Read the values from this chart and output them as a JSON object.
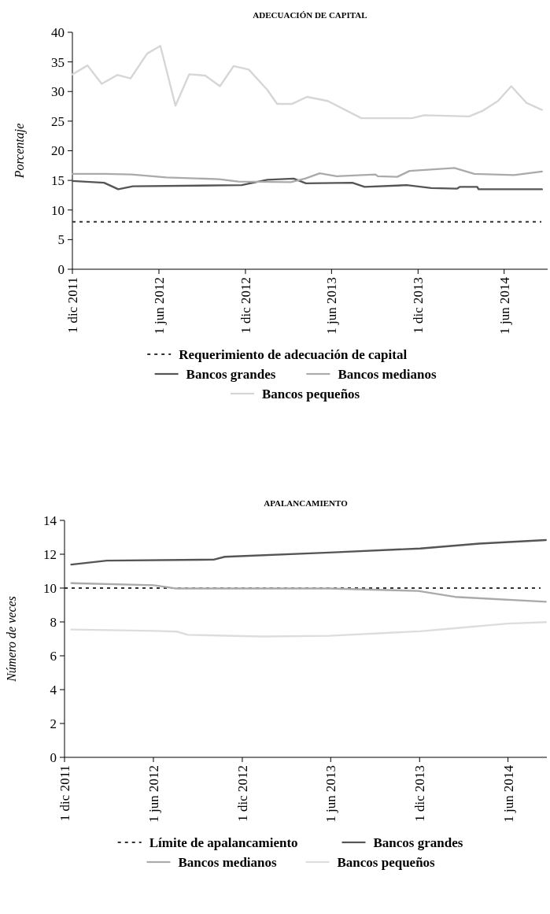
{
  "chart_data": [
    {
      "type": "line",
      "title": "ADECUACIÓN DE CAPITAL",
      "ylabel": "Porcentaje",
      "xlim": [
        "2011-12-01",
        "2014-09-01"
      ],
      "xticks": [
        {
          "value": "2011-12-01",
          "label": "1 dic 2011"
        },
        {
          "value": "2012-06-01",
          "label": "1 jun 2012"
        },
        {
          "value": "2012-12-01",
          "label": "1 dic 2012"
        },
        {
          "value": "2013-06-01",
          "label": "1 jun 2013"
        },
        {
          "value": "2013-12-01",
          "label": "1 dic 2013"
        },
        {
          "value": "2014-06-01",
          "label": "1 jun 2014"
        }
      ],
      "ylim": [
        0,
        40
      ],
      "yticks": [
        0,
        5,
        10,
        15,
        20,
        25,
        30,
        35,
        40
      ],
      "ref_lines": [
        {
          "axis": "y",
          "value": 8,
          "label": "Requerimiento de adecuación de capital",
          "color": "#333333",
          "line_style": "dashed"
        }
      ],
      "legend": "bottom",
      "grid": false,
      "line_style": "solid",
      "series": [
        {
          "name": "Bancos grandes",
          "color": "#555555",
          "x": [
            "2011-12-01",
            "2012-02-06",
            "2012-03-07",
            "2012-04-07",
            "2012-11-23",
            "2013-01-16",
            "2013-03-13",
            "2013-04-08",
            "2013-07-15",
            "2013-08-10",
            "2013-11-07",
            "2013-12-29",
            "2014-02-21",
            "2014-02-27",
            "2014-04-05",
            "2014-04-08",
            "2014-08-20"
          ],
          "values": [
            14.9,
            14.6,
            13.5,
            14.0,
            14.2,
            15.1,
            15.3,
            14.5,
            14.6,
            13.9,
            14.2,
            13.7,
            13.6,
            13.9,
            13.9,
            13.5,
            13.5
          ]
        },
        {
          "name": "Bancos medianos",
          "color": "#aaaaaa",
          "x": [
            "2011-12-01",
            "2012-02-08",
            "2012-04-04",
            "2012-06-17",
            "2012-10-06",
            "2012-11-16",
            "2013-03-07",
            "2013-04-06",
            "2013-05-07",
            "2013-06-12",
            "2013-09-02",
            "2013-09-07",
            "2013-10-18",
            "2013-11-13",
            "2014-02-16",
            "2014-03-30",
            "2014-06-22",
            "2014-08-20"
          ],
          "values": [
            16.1,
            16.1,
            16.0,
            15.5,
            15.2,
            14.8,
            14.7,
            15.3,
            16.2,
            15.7,
            16.0,
            15.7,
            15.6,
            16.6,
            17.1,
            16.1,
            15.9,
            16.5
          ]
        },
        {
          "name": "Bancos pequeños",
          "color": "#d6d6d6",
          "x": [
            "2011-12-01",
            "2012-01-02",
            "2012-02-01",
            "2012-03-05",
            "2012-04-02",
            "2012-05-07",
            "2012-06-04",
            "2012-07-06",
            "2012-08-04",
            "2012-09-07",
            "2012-10-08",
            "2012-11-06",
            "2012-12-08",
            "2013-01-16",
            "2013-02-06",
            "2013-03-09",
            "2013-04-10",
            "2013-05-24",
            "2013-08-03",
            "2013-11-18",
            "2013-12-14",
            "2014-03-19",
            "2014-04-18",
            "2014-05-19",
            "2014-06-16",
            "2014-07-18",
            "2014-08-20"
          ],
          "values": [
            32.9,
            34.4,
            31.3,
            32.8,
            32.2,
            36.4,
            37.7,
            27.6,
            32.9,
            32.7,
            30.9,
            34.3,
            33.7,
            30.3,
            27.9,
            27.9,
            29.1,
            28.4,
            25.5,
            25.5,
            26.0,
            25.8,
            26.8,
            28.4,
            30.9,
            28.1,
            26.9
          ]
        }
      ]
    },
    {
      "type": "line",
      "title": "APALANCAMIENTO",
      "ylabel": "Número de veces",
      "xlim": [
        "2011-12-01",
        "2014-08-20"
      ],
      "xticks": [
        {
          "value": "2011-12-01",
          "label": "1 dic 2011"
        },
        {
          "value": "2012-06-01",
          "label": "1 jun 2012"
        },
        {
          "value": "2012-12-01",
          "label": "1 dic 2012"
        },
        {
          "value": "2013-06-01",
          "label": "1 jun 2013"
        },
        {
          "value": "2013-12-01",
          "label": "1 dic 2013"
        },
        {
          "value": "2014-06-01",
          "label": "1 jun 2014"
        }
      ],
      "ylim": [
        0,
        14
      ],
      "yticks": [
        0,
        2,
        4,
        6,
        8,
        10,
        12,
        14
      ],
      "ref_lines": [
        {
          "axis": "y",
          "value": 10,
          "label": "Límite de apalancamiento",
          "color": "#333333",
          "line_style": "dashed"
        }
      ],
      "legend": "bottom",
      "grid": false,
      "line_style": "solid",
      "series": [
        {
          "name": "Bancos grandes",
          "color": "#555555",
          "x": [
            "2011-12-15",
            "2012-02-26",
            "2012-10-03",
            "2012-10-26",
            "2013-05-29",
            "2013-12-02",
            "2014-04-03",
            "2014-08-18"
          ],
          "values": [
            11.39,
            11.62,
            11.68,
            11.85,
            12.1,
            12.34,
            12.63,
            12.84
          ]
        },
        {
          "name": "Bancos medianos",
          "color": "#aaaaaa",
          "x": [
            "2011-12-15",
            "2012-06-02",
            "2012-07-16",
            "2013-05-29",
            "2013-11-28",
            "2014-02-12",
            "2014-08-18"
          ],
          "values": [
            10.29,
            10.17,
            9.98,
            9.98,
            9.83,
            9.48,
            9.19
          ]
        },
        {
          "name": "Bancos pequeños",
          "color": "#dddddd",
          "x": [
            "2011-12-15",
            "2012-06-02",
            "2012-07-19",
            "2012-08-11",
            "2013-01-12",
            "2013-05-29",
            "2013-12-02",
            "2014-02-12",
            "2014-05-31",
            "2014-08-18"
          ],
          "values": [
            7.55,
            7.47,
            7.43,
            7.24,
            7.14,
            7.18,
            7.45,
            7.63,
            7.9,
            7.99
          ]
        }
      ]
    }
  ]
}
